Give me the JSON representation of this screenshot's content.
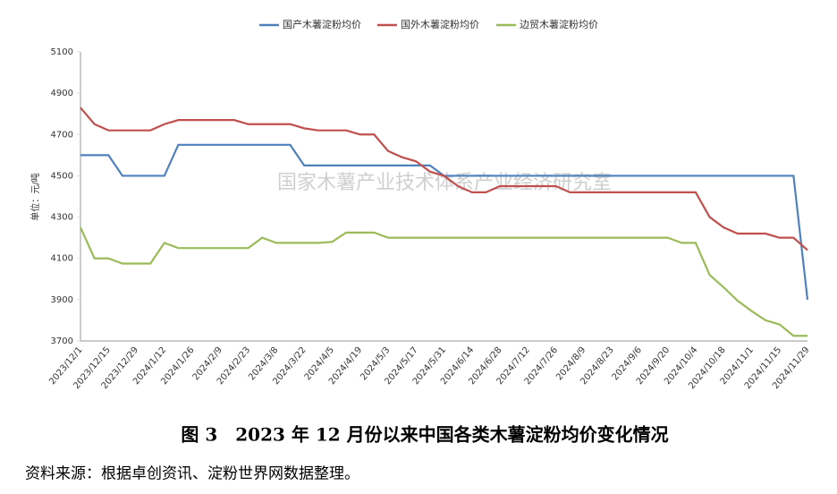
{
  "chart_data": {
    "type": "line",
    "ylabel": "单位：元/吨",
    "watermark": "国家木薯产业技术体系产业经济研究室",
    "caption": "图 3　2023 年 12 月份以来中国各类木薯淀粉均价变化情况",
    "source": "资料来源：根据卓创资讯、淀粉世界网数据整理。",
    "categories": [
      "2023/12/1",
      null,
      "2023/12/15",
      null,
      "2023/12/29",
      null,
      "2024/1/12",
      null,
      "2024/1/26",
      null,
      "2024/2/9",
      null,
      "2024/2/23",
      null,
      "2024/3/8",
      null,
      "2024/3/22",
      null,
      "2024/4/5",
      null,
      "2024/4/19",
      null,
      "2024/5/3",
      null,
      "2024/5/17",
      null,
      "2024/5/31",
      null,
      "2024/6/14",
      null,
      "2024/6/28",
      null,
      "2024/7/12",
      null,
      "2024/7/26",
      null,
      "2024/8/9",
      null,
      "2024/8/23",
      null,
      "2024/9/6",
      null,
      "2024/9/20",
      null,
      "2024/10/4",
      null,
      "2024/10/18",
      null,
      "2024/11/1",
      null,
      "2024/11/15",
      null,
      "2024/11/29"
    ],
    "series": [
      {
        "name": "国产木薯淀粉均价",
        "color": "#4f81bd",
        "values": [
          4600,
          4600,
          4600,
          4500,
          4500,
          4500,
          4500,
          4650,
          4650,
          4650,
          4650,
          4650,
          4650,
          4650,
          4650,
          4650,
          4550,
          4550,
          4550,
          4550,
          4550,
          4550,
          4550,
          4550,
          4550,
          4550,
          4500,
          4500,
          4500,
          4500,
          4500,
          4500,
          4500,
          4500,
          4500,
          4500,
          4500,
          4500,
          4500,
          4500,
          4500,
          4500,
          4500,
          4500,
          4500,
          4500,
          4500,
          4500,
          4500,
          4500,
          4500,
          4500,
          3900
        ]
      },
      {
        "name": "国外木薯淀粉均价",
        "color": "#c0504d",
        "values": [
          4830,
          4750,
          4720,
          4720,
          4720,
          4720,
          4750,
          4770,
          4770,
          4770,
          4770,
          4770,
          4750,
          4750,
          4750,
          4750,
          4730,
          4720,
          4720,
          4720,
          4700,
          4700,
          4620,
          4590,
          4570,
          4520,
          4500,
          4450,
          4420,
          4420,
          4450,
          4450,
          4450,
          4450,
          4450,
          4420,
          4420,
          4420,
          4420,
          4420,
          4420,
          4420,
          4420,
          4420,
          4420,
          4300,
          4250,
          4220,
          4220,
          4220,
          4200,
          4200,
          4140
        ]
      },
      {
        "name": "边贸木薯淀粉均价",
        "color": "#9bbb59",
        "values": [
          4250,
          4100,
          4100,
          4075,
          4075,
          4075,
          4175,
          4150,
          4150,
          4150,
          4150,
          4150,
          4150,
          4200,
          4175,
          4175,
          4175,
          4175,
          4180,
          4225,
          4225,
          4225,
          4200,
          4200,
          4200,
          4200,
          4200,
          4200,
          4200,
          4200,
          4200,
          4200,
          4200,
          4200,
          4200,
          4200,
          4200,
          4200,
          4200,
          4200,
          4200,
          4200,
          4200,
          4175,
          4175,
          4020,
          3960,
          3895,
          3845,
          3800,
          3780,
          3725,
          3725
        ]
      }
    ],
    "ylim": [
      3700,
      5100
    ],
    "yticks": [
      3700,
      3900,
      4100,
      4300,
      4500,
      4700,
      4900,
      5100
    ],
    "grid": false,
    "legend": "top"
  }
}
